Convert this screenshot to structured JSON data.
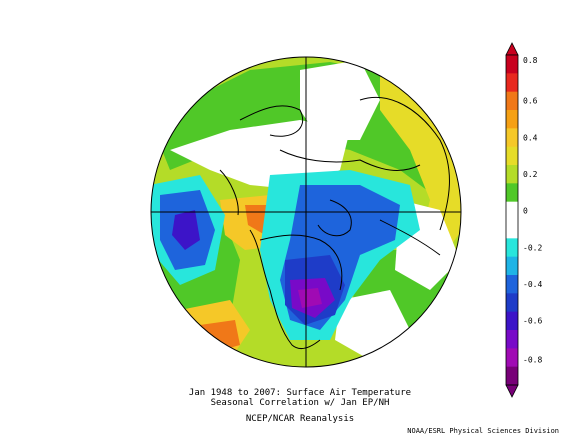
{
  "caption": {
    "line1": "Jan 1948 to 2007: Surface Air Temperature",
    "line2": "Seasonal Correlation w/ Jan EP/NH",
    "line3": "NCEP/NCAR Reanalysis"
  },
  "credit": "NOAA/ESRL Physical Sciences Division",
  "colorbar": {
    "ticks": [
      "0.8",
      "0.6",
      "0.4",
      "0.2",
      "0",
      "-0.2",
      "-0.4",
      "-0.6",
      "-0.8"
    ],
    "colors": [
      "#c8001e",
      "#e8281e",
      "#f07818",
      "#f5a014",
      "#f5c828",
      "#e6dc28",
      "#b4dc28",
      "#50c828",
      "#ffffff",
      "#ffffff",
      "#28e6dc",
      "#1eb4e6",
      "#1e64dc",
      "#1e3cc8",
      "#3c14c8",
      "#780ac8",
      "#a00ab4",
      "#780078"
    ]
  },
  "map": {
    "colors": {
      "strong_pos": "#f07818",
      "pos": "#f5c828",
      "weak_pos_yellow": "#e6dc28",
      "weak_pos_green": "#50c828",
      "light_green": "#b4dc28",
      "neutral": "#ffffff",
      "weak_neg": "#28e6dc",
      "neg_light": "#1eb4e6",
      "neg": "#1e64dc",
      "strong_neg": "#1e3cc8",
      "stronger_neg": "#3c14c8",
      "purple": "#780ac8",
      "magenta": "#a00ab4"
    }
  }
}
